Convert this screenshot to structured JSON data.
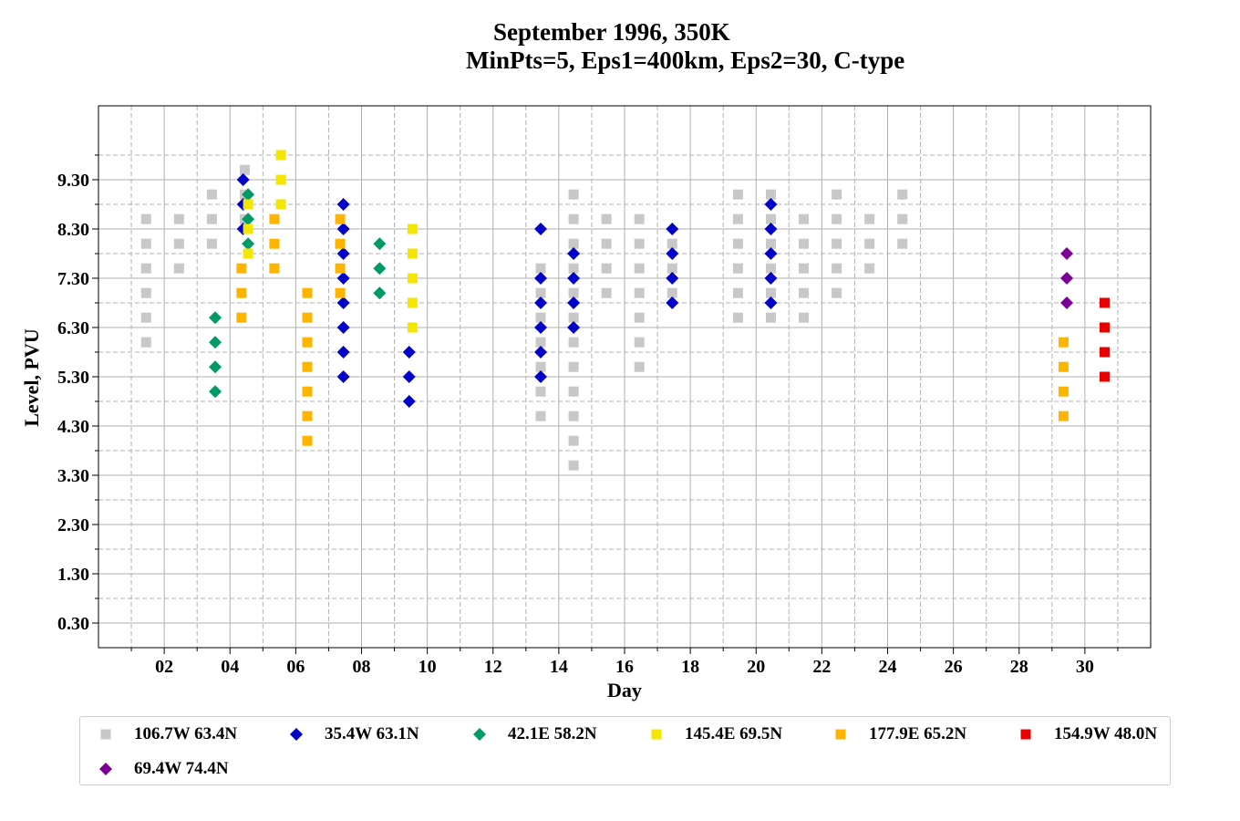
{
  "chart_data": {
    "type": "scatter",
    "title": "September 1996, 350K",
    "subtitle": "MinPts=5, Eps1=400km, Eps2=30, C-type",
    "xlabel": "Day",
    "ylabel": "Level, PVU",
    "xlim": [
      0,
      32
    ],
    "ylim": [
      -0.2,
      10.8
    ],
    "x_ticks": [
      2,
      4,
      6,
      8,
      10,
      12,
      14,
      16,
      18,
      20,
      22,
      24,
      26,
      28,
      30
    ],
    "x_tick_labels": [
      "02",
      "04",
      "06",
      "08",
      "10",
      "12",
      "14",
      "16",
      "18",
      "20",
      "22",
      "24",
      "26",
      "28",
      "30"
    ],
    "y_ticks": [
      0.3,
      1.3,
      2.3,
      3.3,
      4.3,
      5.3,
      6.3,
      7.3,
      8.3,
      9.3
    ],
    "y_tick_labels": [
      "0.30",
      "1.30",
      "2.30",
      "3.30",
      "4.30",
      "5.30",
      "6.30",
      "7.30",
      "8.30",
      "9.30"
    ],
    "grid": true,
    "legend_position": "bottom",
    "series": [
      {
        "name": "106.7W 63.4N",
        "color": "#c8c8c8",
        "marker": "square",
        "points": [
          [
            1.45,
            6.0
          ],
          [
            1.45,
            6.5
          ],
          [
            1.45,
            7.0
          ],
          [
            1.45,
            7.5
          ],
          [
            1.45,
            8.0
          ],
          [
            1.45,
            8.5
          ],
          [
            2.45,
            7.5
          ],
          [
            2.45,
            8.0
          ],
          [
            2.45,
            8.5
          ],
          [
            3.45,
            8.0
          ],
          [
            3.45,
            8.5
          ],
          [
            3.45,
            9.0
          ],
          [
            4.45,
            8.5
          ],
          [
            4.45,
            9.0
          ],
          [
            4.45,
            9.5
          ],
          [
            13.45,
            4.5
          ],
          [
            13.45,
            5.0
          ],
          [
            13.45,
            5.5
          ],
          [
            13.45,
            6.0
          ],
          [
            13.45,
            6.5
          ],
          [
            13.45,
            7.0
          ],
          [
            13.45,
            7.5
          ],
          [
            14.45,
            3.5
          ],
          [
            14.45,
            4.0
          ],
          [
            14.45,
            4.5
          ],
          [
            14.45,
            5.0
          ],
          [
            14.45,
            5.5
          ],
          [
            14.45,
            6.0
          ],
          [
            14.45,
            6.5
          ],
          [
            14.45,
            7.0
          ],
          [
            14.45,
            7.5
          ],
          [
            14.45,
            8.0
          ],
          [
            14.45,
            8.5
          ],
          [
            14.45,
            9.0
          ],
          [
            15.45,
            7.0
          ],
          [
            15.45,
            7.5
          ],
          [
            15.45,
            8.0
          ],
          [
            15.45,
            8.5
          ],
          [
            16.45,
            5.5
          ],
          [
            16.45,
            6.0
          ],
          [
            16.45,
            6.5
          ],
          [
            16.45,
            7.0
          ],
          [
            16.45,
            7.5
          ],
          [
            16.45,
            8.0
          ],
          [
            16.45,
            8.5
          ],
          [
            17.45,
            7.0
          ],
          [
            17.45,
            7.5
          ],
          [
            17.45,
            8.0
          ],
          [
            19.45,
            6.5
          ],
          [
            19.45,
            7.0
          ],
          [
            19.45,
            7.5
          ],
          [
            19.45,
            8.0
          ],
          [
            19.45,
            8.5
          ],
          [
            19.45,
            9.0
          ],
          [
            20.45,
            6.5
          ],
          [
            20.45,
            7.0
          ],
          [
            20.45,
            7.5
          ],
          [
            20.45,
            8.0
          ],
          [
            20.45,
            8.5
          ],
          [
            20.45,
            9.0
          ],
          [
            21.45,
            6.5
          ],
          [
            21.45,
            7.0
          ],
          [
            21.45,
            7.5
          ],
          [
            21.45,
            8.0
          ],
          [
            21.45,
            8.5
          ],
          [
            22.45,
            7.0
          ],
          [
            22.45,
            7.5
          ],
          [
            22.45,
            8.0
          ],
          [
            22.45,
            8.5
          ],
          [
            22.45,
            9.0
          ],
          [
            23.45,
            7.5
          ],
          [
            23.45,
            8.0
          ],
          [
            23.45,
            8.5
          ],
          [
            24.45,
            8.0
          ],
          [
            24.45,
            8.5
          ],
          [
            24.45,
            9.0
          ]
        ]
      },
      {
        "name": "35.4W 63.1N",
        "color": "#0000c8",
        "marker": "diamond",
        "points": [
          [
            4.4,
            8.3
          ],
          [
            4.4,
            8.8
          ],
          [
            4.4,
            9.3
          ],
          [
            7.45,
            5.3
          ],
          [
            7.45,
            5.8
          ],
          [
            7.45,
            6.3
          ],
          [
            7.45,
            6.8
          ],
          [
            7.45,
            7.3
          ],
          [
            7.45,
            7.8
          ],
          [
            7.45,
            8.3
          ],
          [
            7.45,
            8.8
          ],
          [
            9.45,
            4.8
          ],
          [
            9.45,
            5.3
          ],
          [
            9.45,
            5.8
          ],
          [
            13.45,
            5.3
          ],
          [
            13.45,
            5.8
          ],
          [
            13.45,
            6.3
          ],
          [
            13.45,
            6.8
          ],
          [
            13.45,
            7.3
          ],
          [
            13.45,
            8.3
          ],
          [
            14.45,
            6.3
          ],
          [
            14.45,
            6.8
          ],
          [
            14.45,
            7.3
          ],
          [
            14.45,
            7.8
          ],
          [
            17.45,
            6.8
          ],
          [
            17.45,
            7.3
          ],
          [
            17.45,
            7.8
          ],
          [
            17.45,
            8.3
          ],
          [
            20.45,
            6.8
          ],
          [
            20.45,
            7.3
          ],
          [
            20.45,
            7.8
          ],
          [
            20.45,
            8.3
          ],
          [
            20.45,
            8.8
          ]
        ]
      },
      {
        "name": "42.1E 58.2N",
        "color": "#009a64",
        "marker": "diamond",
        "points": [
          [
            3.55,
            5.0
          ],
          [
            3.55,
            5.5
          ],
          [
            3.55,
            6.0
          ],
          [
            3.55,
            6.5
          ],
          [
            4.55,
            8.0
          ],
          [
            4.55,
            8.5
          ],
          [
            4.55,
            9.0
          ],
          [
            8.55,
            7.0
          ],
          [
            8.55,
            7.5
          ],
          [
            8.55,
            8.0
          ]
        ]
      },
      {
        "name": "145.4E 69.5N",
        "color": "#f5e600",
        "marker": "square",
        "points": [
          [
            4.55,
            7.8
          ],
          [
            4.55,
            8.3
          ],
          [
            4.55,
            8.8
          ],
          [
            5.55,
            8.8
          ],
          [
            5.55,
            9.3
          ],
          [
            5.55,
            9.8
          ],
          [
            9.55,
            6.3
          ],
          [
            9.55,
            6.8
          ],
          [
            9.55,
            7.3
          ],
          [
            9.55,
            7.8
          ],
          [
            9.55,
            8.3
          ]
        ]
      },
      {
        "name": "177.9E 65.2N",
        "color": "#ffb400",
        "marker": "square",
        "points": [
          [
            4.35,
            6.5
          ],
          [
            4.35,
            7.0
          ],
          [
            4.35,
            7.5
          ],
          [
            5.35,
            7.5
          ],
          [
            5.35,
            8.0
          ],
          [
            5.35,
            8.5
          ],
          [
            6.35,
            4.0
          ],
          [
            6.35,
            4.5
          ],
          [
            6.35,
            5.0
          ],
          [
            6.35,
            5.5
          ],
          [
            6.35,
            6.0
          ],
          [
            6.35,
            6.5
          ],
          [
            6.35,
            7.0
          ],
          [
            7.35,
            7.0
          ],
          [
            7.35,
            7.5
          ],
          [
            7.35,
            8.0
          ],
          [
            7.35,
            8.5
          ],
          [
            29.35,
            4.5
          ],
          [
            29.35,
            5.0
          ],
          [
            29.35,
            5.5
          ],
          [
            29.35,
            6.0
          ]
        ]
      },
      {
        "name": "154.9W 48.0N",
        "color": "#e60000",
        "marker": "square",
        "points": [
          [
            30.6,
            5.3
          ],
          [
            30.6,
            5.8
          ],
          [
            30.6,
            6.3
          ],
          [
            30.6,
            6.8
          ]
        ]
      },
      {
        "name": "69.4W 74.4N",
        "color": "#7d0096",
        "marker": "diamond",
        "points": [
          [
            29.45,
            6.8
          ],
          [
            29.45,
            7.3
          ],
          [
            29.45,
            7.8
          ]
        ]
      }
    ]
  }
}
